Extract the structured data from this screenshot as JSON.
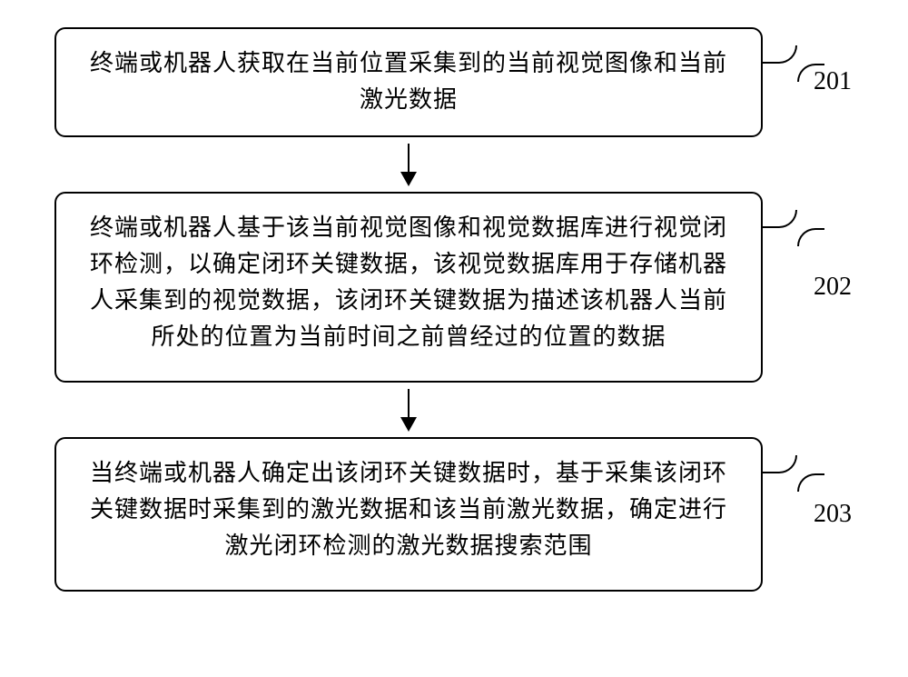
{
  "flowchart": {
    "type": "flowchart",
    "background_color": "#ffffff",
    "border_color": "#000000",
    "text_color": "#000000",
    "border_width": 2,
    "border_radius": 12,
    "font_size": 26,
    "label_font_size": 28,
    "arrow_height": 45,
    "nodes": [
      {
        "id": "step1",
        "label": "201",
        "text": "终端或机器人获取在当前位置采集到的当前视觉图像和当前激光数据"
      },
      {
        "id": "step2",
        "label": "202",
        "text": "终端或机器人基于该当前视觉图像和视觉数据库进行视觉闭环检测，以确定闭环关键数据，该视觉数据库用于存储机器人采集到的视觉数据，该闭环关键数据为描述该机器人当前所处的位置为当前时间之前曾经过的位置的数据"
      },
      {
        "id": "step3",
        "label": "203",
        "text": "当终端或机器人确定出该闭环关键数据时，基于采集该闭环关键数据时采集到的激光数据和该当前激光数据，确定进行激光闭环检测的激光数据搜索范围"
      }
    ],
    "edges": [
      {
        "from": "step1",
        "to": "step2"
      },
      {
        "from": "step2",
        "to": "step3"
      }
    ]
  }
}
